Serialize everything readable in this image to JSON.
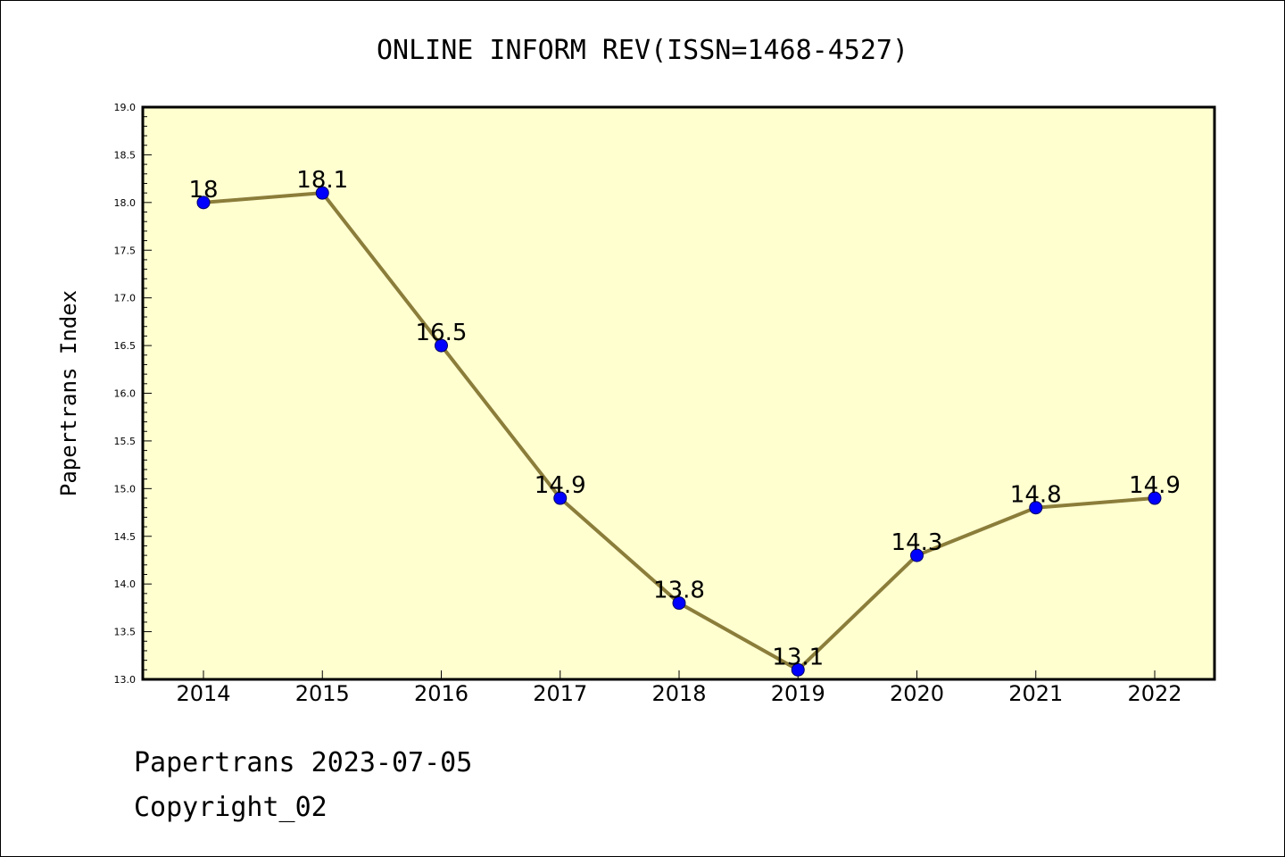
{
  "chart_data": {
    "type": "line",
    "title": "ONLINE INFORM REV(ISSN=1468-4527)",
    "xlabel": "",
    "ylabel": "Papertrans Index",
    "categories": [
      "2014",
      "2015",
      "2016",
      "2017",
      "2018",
      "2019",
      "2020",
      "2021",
      "2022"
    ],
    "series": [
      {
        "values": [
          18,
          18.1,
          16.5,
          14.9,
          13.8,
          13.1,
          14.3,
          14.8,
          14.9
        ],
        "labels": [
          "18",
          "18.1",
          "16.5",
          "14.9",
          "13.8",
          "13.1",
          "14.3",
          "14.8",
          "14.9"
        ],
        "line_color": "#8B7D3A",
        "marker_color": "#0000FF"
      }
    ],
    "ylim": [
      13.0,
      19.0
    ],
    "yticks": [
      "13.0",
      "13.5",
      "14.0",
      "14.5",
      "15.0",
      "15.5",
      "16.0",
      "16.5",
      "17.0",
      "17.5",
      "18.0",
      "18.5",
      "19.0"
    ],
    "plot_background": "#FFFFD0",
    "grid": false,
    "legend": "none"
  },
  "footer": {
    "line1": "Papertrans 2023-07-05",
    "line2": "Copyright_02"
  }
}
